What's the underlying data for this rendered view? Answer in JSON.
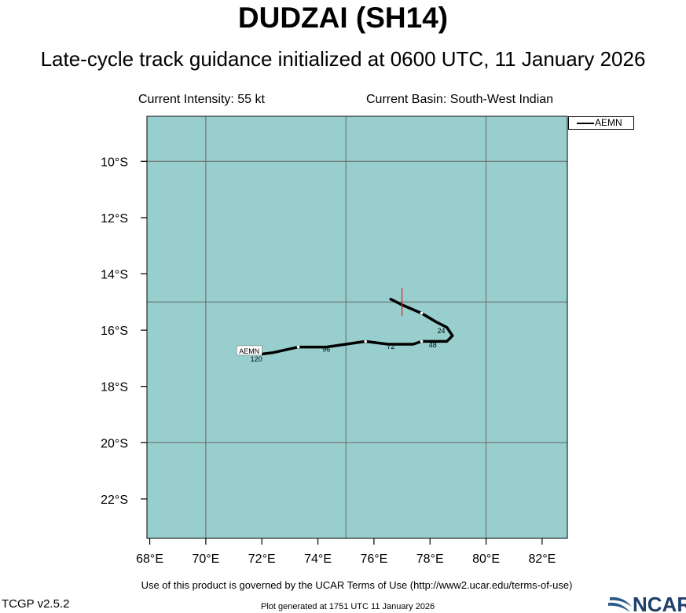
{
  "title": "DUDZAI (SH14)",
  "subtitle": "Late-cycle track guidance initialized at 0600 UTC, 11 January 2026",
  "info": {
    "intensity": "Current Intensity: 55 kt",
    "basin": "Current Basin: South-West Indian"
  },
  "map": {
    "projection": "lat-lon",
    "lon_range": [
      67.9,
      82.9
    ],
    "lat_range": [
      -23.4,
      -8.4
    ],
    "ocean_color": "#98cfce",
    "grid_color": "#666666",
    "x_ticks": [
      {
        "value": 68,
        "label": "68°E"
      },
      {
        "value": 70,
        "label": "70°E"
      },
      {
        "value": 72,
        "label": "72°E"
      },
      {
        "value": 74,
        "label": "74°E"
      },
      {
        "value": 76,
        "label": "76°E"
      },
      {
        "value": 78,
        "label": "78°E"
      },
      {
        "value": 80,
        "label": "80°E"
      },
      {
        "value": 82,
        "label": "82°E"
      }
    ],
    "y_ticks": [
      {
        "value": -10,
        "label": "10°S"
      },
      {
        "value": -12,
        "label": "12°S"
      },
      {
        "value": -14,
        "label": "14°S"
      },
      {
        "value": -16,
        "label": "16°S"
      },
      {
        "value": -18,
        "label": "18°S"
      },
      {
        "value": -20,
        "label": "20°S"
      },
      {
        "value": -22,
        "label": "22°S"
      }
    ],
    "grid_lons": [
      70,
      75,
      80
    ],
    "grid_lats": [
      -10,
      -15,
      -20
    ],
    "current_position": {
      "lon": 77.0,
      "lat": -15.0
    }
  },
  "tracks": [
    {
      "name": "AEMN",
      "color": "#000000",
      "points": [
        {
          "lon": 76.6,
          "lat": -14.9
        },
        {
          "lon": 77.0,
          "lat": -15.1
        },
        {
          "lon": 77.7,
          "lat": -15.4
        },
        {
          "lon": 78.2,
          "lat": -15.7
        },
        {
          "lon": 78.6,
          "lat": -15.9
        },
        {
          "lon": 78.8,
          "lat": -16.2
        },
        {
          "lon": 78.6,
          "lat": -16.4
        },
        {
          "lon": 78.2,
          "lat": -16.4
        },
        {
          "lon": 77.7,
          "lat": -16.4
        },
        {
          "lon": 77.4,
          "lat": -16.5
        },
        {
          "lon": 76.5,
          "lat": -16.5
        },
        {
          "lon": 75.7,
          "lat": -16.4
        },
        {
          "lon": 75.0,
          "lat": -16.5
        },
        {
          "lon": 74.3,
          "lat": -16.6
        },
        {
          "lon": 73.3,
          "lat": -16.6
        },
        {
          "lon": 72.4,
          "lat": -16.8
        },
        {
          "lon": 72.0,
          "lat": -16.85
        }
      ],
      "markers": [
        {
          "lon": 77.7,
          "lat": -15.4
        },
        {
          "lon": 77.7,
          "lat": -16.4
        },
        {
          "lon": 75.7,
          "lat": -16.4
        },
        {
          "lon": 73.3,
          "lat": -16.6
        }
      ],
      "hour_labels": [
        {
          "text": "24",
          "lon": 78.4,
          "lat": -16.0
        },
        {
          "text": "48",
          "lon": 78.1,
          "lat": -16.5
        },
        {
          "text": "72",
          "lon": 76.6,
          "lat": -16.55
        },
        {
          "text": "96",
          "lon": 74.3,
          "lat": -16.65
        },
        {
          "text": "120",
          "lon": 71.8,
          "lat": -17.0
        }
      ],
      "end_label": {
        "text": "AEMN",
        "lon": 72.0,
        "lat": -16.75
      }
    }
  ],
  "legend": {
    "label": "AEMN"
  },
  "footer": {
    "terms": "Use of this product is governed by the UCAR Terms of Use (http://www2.ucar.edu/terms-of-use)",
    "version": "TCGP v2.5.2",
    "generated": "Plot generated at 1751 UTC   11 January 2026",
    "logo_text": "NCAR"
  }
}
